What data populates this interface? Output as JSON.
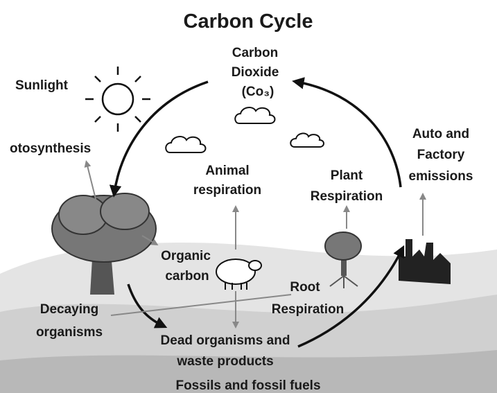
{
  "title": "Carbon Cycle",
  "labels": [
    {
      "lines": [
        "Carbon",
        "Dioxide",
        "(Co₃)"
      ]
    },
    {
      "lines": [
        "Sunlight"
      ]
    },
    {
      "lines": [
        "otosynthesis"
      ]
    },
    {
      "lines": [
        "Animal",
        "respiration"
      ]
    },
    {
      "lines": [
        "Plant",
        "Respiration"
      ]
    },
    {
      "lines": [
        "Auto and",
        "Factory",
        "emissions"
      ]
    },
    {
      "lines": [
        "Organic",
        "carbon"
      ]
    },
    {
      "lines": [
        "Root",
        "Respiration"
      ]
    },
    {
      "lines": [
        "Decaying",
        "organisms"
      ]
    },
    {
      "lines": [
        "Dead organisms and",
        "waste products"
      ]
    },
    {
      "lines": [
        "Fossils and fossil fuels"
      ]
    }
  ]
}
